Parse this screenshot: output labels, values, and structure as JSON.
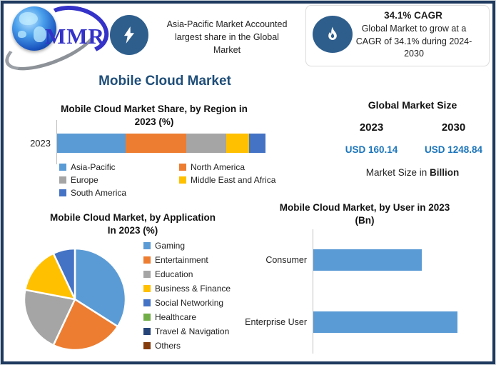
{
  "header": {
    "logo": {
      "text": "MMR"
    },
    "highlight1": {
      "text": "Asia-Pacific Market Accounted\nlargest share in the Global\nMarket"
    },
    "highlight2": {
      "title": "34.1% CAGR",
      "text": "Global Market to grow at a\nCAGR of 34.1% during 2024-\n2030"
    }
  },
  "main_title": "Mobile Cloud Market",
  "market_size_panel": {
    "title": "Global Market Size",
    "columns": [
      {
        "year": "2023",
        "value": "USD 160.14"
      },
      {
        "year": "2030",
        "value": "USD 1248.84"
      }
    ],
    "note_prefix": "Market Size in ",
    "note_bold": "Billion"
  },
  "icons": {
    "bolt_icon": "white lightning bolt in navy circle",
    "flame_icon": "white flame in navy circle",
    "globe_icon": "blue globe with gray swoosh"
  },
  "colors": {
    "frame_border": "#1E3A5F",
    "icon_circle": "#2E5E8C",
    "title_blue": "#1F4E79",
    "value_blue": "#1B75BB",
    "axis_gray": "#BFBFBF"
  },
  "chart_data": [
    {
      "id": "region",
      "type": "bar",
      "subtype": "stacked-horizontal",
      "title": "Mobile Cloud Market Share, by Region in\n2023 (%)",
      "categories": [
        "2023"
      ],
      "unit": "%",
      "legend_position": "bottom",
      "series": [
        {
          "name": "Asia-Pacific",
          "value": 33,
          "color": "#5B9BD5"
        },
        {
          "name": "North America",
          "value": 29,
          "color": "#ED7D31"
        },
        {
          "name": "Europe",
          "value": 19,
          "color": "#A5A5A5"
        },
        {
          "name": "Middle East and Africa",
          "value": 11,
          "color": "#FFC000"
        },
        {
          "name": "South America",
          "value": 8,
          "color": "#4472C4"
        }
      ]
    },
    {
      "id": "application",
      "type": "pie",
      "title": "Mobile Cloud Market, by Application\nIn 2023 (%)",
      "unit": "%",
      "legend_position": "right",
      "start_angle_deg": 0,
      "series": [
        {
          "name": "Gaming",
          "value": 34,
          "color": "#5B9BD5"
        },
        {
          "name": "Entertainment",
          "value": 23,
          "color": "#ED7D31"
        },
        {
          "name": "Education",
          "value": 21,
          "color": "#A5A5A5"
        },
        {
          "name": "Business & Finance",
          "value": 15,
          "color": "#FFC000"
        },
        {
          "name": "Social Networking",
          "value": 7,
          "color": "#4472C4"
        },
        {
          "name": "Healthcare",
          "value": 0,
          "color": "#70AD47"
        },
        {
          "name": "Travel & Navigation",
          "value": 0,
          "color": "#264478"
        },
        {
          "name": "Others",
          "value": 0,
          "color": "#843C0C"
        }
      ]
    },
    {
      "id": "user",
      "type": "bar",
      "subtype": "horizontal",
      "title": "Mobile Cloud Market, by User in 2023\n(Bn)",
      "categories": [
        "Consumer",
        "Enterprise User"
      ],
      "values_relative": [
        0.75,
        1.0
      ],
      "bar_color": "#5B9BD5",
      "value_axis": "unlabeled"
    }
  ]
}
